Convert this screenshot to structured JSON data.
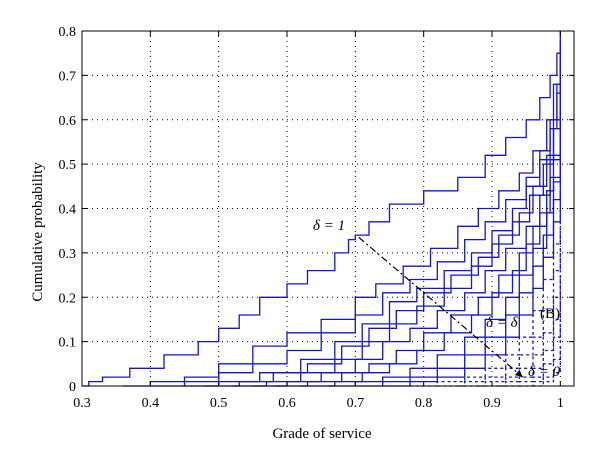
{
  "chart_data": {
    "type": "line",
    "title": "",
    "xlabel": "Grade of service",
    "ylabel": "Cumulative probability",
    "xlim": [
      0.3,
      1.02
    ],
    "ylim": [
      0,
      0.8
    ],
    "xticks": [
      "0.3",
      "0.4",
      "0.5",
      "0.6",
      "0.7",
      "0.8",
      "0.9",
      "1"
    ],
    "yticks": [
      "0",
      "0.1",
      "0.2",
      "0.3",
      "0.4",
      "0.5",
      "0.6",
      "0.7",
      "0.8"
    ],
    "grid": true,
    "line_color": "#1515d0",
    "annotations": {
      "delta_one": "δ = 1",
      "delta_b": "δ = δ",
      "delta_b_sup": "(B)",
      "delta_zero": "δ = 0"
    },
    "series": [
      {
        "style": "solid",
        "x": [
          0.3,
          0.31,
          0.33,
          0.37,
          0.42,
          0.47,
          0.5,
          0.53,
          0.56,
          0.6,
          0.63,
          0.67,
          0.69,
          0.7,
          0.72,
          0.75,
          0.8,
          0.85,
          0.89,
          0.92,
          0.95,
          0.97,
          0.985,
          0.995,
          1.0
        ],
        "y": [
          0.0,
          0.01,
          0.02,
          0.04,
          0.07,
          0.1,
          0.13,
          0.16,
          0.2,
          0.23,
          0.26,
          0.3,
          0.33,
          0.34,
          0.37,
          0.41,
          0.44,
          0.47,
          0.52,
          0.56,
          0.6,
          0.65,
          0.7,
          0.75,
          0.8
        ]
      },
      {
        "style": "solid",
        "x": [
          0.36,
          0.4,
          0.45,
          0.5,
          0.55,
          0.6,
          0.65,
          0.7,
          0.73,
          0.77,
          0.81,
          0.85,
          0.88,
          0.91,
          0.94,
          0.96,
          0.98,
          0.99,
          1.0
        ],
        "y": [
          0.0,
          0.01,
          0.02,
          0.05,
          0.09,
          0.12,
          0.15,
          0.2,
          0.23,
          0.27,
          0.31,
          0.36,
          0.4,
          0.44,
          0.48,
          0.53,
          0.6,
          0.68,
          0.78
        ]
      },
      {
        "style": "solid",
        "x": [
          0.4,
          0.45,
          0.5,
          0.55,
          0.6,
          0.65,
          0.7,
          0.74,
          0.78,
          0.82,
          0.86,
          0.89,
          0.92,
          0.95,
          0.97,
          0.985,
          0.995,
          1.0
        ],
        "y": [
          0.0,
          0.01,
          0.03,
          0.05,
          0.08,
          0.12,
          0.16,
          0.21,
          0.24,
          0.28,
          0.33,
          0.37,
          0.42,
          0.47,
          0.53,
          0.6,
          0.68,
          0.76
        ]
      },
      {
        "style": "solid",
        "x": [
          0.45,
          0.5,
          0.56,
          0.62,
          0.67,
          0.71,
          0.75,
          0.79,
          0.83,
          0.87,
          0.9,
          0.93,
          0.95,
          0.97,
          0.985,
          0.995,
          1.0
        ],
        "y": [
          0.0,
          0.01,
          0.03,
          0.06,
          0.1,
          0.14,
          0.19,
          0.22,
          0.26,
          0.3,
          0.35,
          0.4,
          0.45,
          0.51,
          0.58,
          0.66,
          0.74
        ]
      },
      {
        "style": "solid",
        "x": [
          0.48,
          0.53,
          0.58,
          0.63,
          0.68,
          0.72,
          0.76,
          0.8,
          0.84,
          0.88,
          0.91,
          0.94,
          0.96,
          0.98,
          0.99,
          1.0
        ],
        "y": [
          0.0,
          0.01,
          0.03,
          0.05,
          0.09,
          0.13,
          0.17,
          0.21,
          0.25,
          0.29,
          0.34,
          0.39,
          0.45,
          0.52,
          0.6,
          0.7
        ]
      },
      {
        "style": "solid",
        "x": [
          0.52,
          0.57,
          0.62,
          0.67,
          0.71,
          0.75,
          0.79,
          0.83,
          0.87,
          0.9,
          0.93,
          0.955,
          0.975,
          0.99,
          1.0
        ],
        "y": [
          0.0,
          0.01,
          0.03,
          0.06,
          0.1,
          0.14,
          0.18,
          0.22,
          0.27,
          0.32,
          0.37,
          0.43,
          0.5,
          0.58,
          0.68
        ]
      },
      {
        "style": "solid",
        "x": [
          0.55,
          0.6,
          0.65,
          0.7,
          0.74,
          0.78,
          0.82,
          0.86,
          0.89,
          0.92,
          0.95,
          0.97,
          0.985,
          1.0
        ],
        "y": [
          0.0,
          0.01,
          0.03,
          0.06,
          0.1,
          0.13,
          0.17,
          0.21,
          0.26,
          0.31,
          0.36,
          0.43,
          0.51,
          0.62
        ]
      },
      {
        "style": "solid",
        "x": [
          0.58,
          0.63,
          0.68,
          0.72,
          0.76,
          0.8,
          0.84,
          0.88,
          0.91,
          0.94,
          0.96,
          0.98,
          0.99,
          1.0
        ],
        "y": [
          0.0,
          0.01,
          0.03,
          0.05,
          0.08,
          0.12,
          0.16,
          0.2,
          0.25,
          0.3,
          0.36,
          0.44,
          0.52,
          0.6
        ]
      },
      {
        "style": "solid",
        "x": [
          0.62,
          0.67,
          0.71,
          0.75,
          0.79,
          0.83,
          0.87,
          0.9,
          0.93,
          0.95,
          0.97,
          0.985,
          1.0
        ],
        "y": [
          0.0,
          0.01,
          0.03,
          0.05,
          0.08,
          0.12,
          0.16,
          0.21,
          0.26,
          0.32,
          0.39,
          0.47,
          0.56
        ]
      },
      {
        "style": "solid",
        "x": [
          0.66,
          0.7,
          0.74,
          0.78,
          0.82,
          0.86,
          0.89,
          0.92,
          0.94,
          0.96,
          0.98,
          0.99,
          1.0
        ],
        "y": [
          0.0,
          0.01,
          0.02,
          0.04,
          0.07,
          0.11,
          0.15,
          0.2,
          0.25,
          0.31,
          0.39,
          0.46,
          0.52
        ]
      },
      {
        "style": "solid",
        "x": [
          0.7,
          0.74,
          0.78,
          0.82,
          0.86,
          0.89,
          0.92,
          0.94,
          0.96,
          0.975,
          0.99,
          1.0
        ],
        "y": [
          0.0,
          0.01,
          0.02,
          0.04,
          0.07,
          0.11,
          0.16,
          0.21,
          0.27,
          0.34,
          0.42,
          0.48
        ]
      },
      {
        "style": "solid",
        "x": [
          0.74,
          0.78,
          0.82,
          0.86,
          0.89,
          0.92,
          0.94,
          0.96,
          0.975,
          0.99,
          1.0
        ],
        "y": [
          0.0,
          0.01,
          0.02,
          0.04,
          0.07,
          0.11,
          0.16,
          0.22,
          0.29,
          0.37,
          0.44
        ]
      },
      {
        "style": "dashed",
        "x": [
          0.78,
          0.82,
          0.86,
          0.89,
          0.92,
          0.94,
          0.96,
          0.975,
          0.99,
          1.0
        ],
        "y": [
          0.0,
          0.01,
          0.02,
          0.04,
          0.07,
          0.11,
          0.17,
          0.24,
          0.32,
          0.4
        ]
      },
      {
        "style": "dashed",
        "x": [
          0.82,
          0.86,
          0.89,
          0.92,
          0.94,
          0.96,
          0.975,
          0.99,
          1.0
        ],
        "y": [
          0.0,
          0.01,
          0.02,
          0.04,
          0.07,
          0.11,
          0.17,
          0.26,
          0.35
        ]
      },
      {
        "style": "dashed",
        "x": [
          0.85,
          0.89,
          0.92,
          0.94,
          0.96,
          0.975,
          0.99,
          1.0
        ],
        "y": [
          0.0,
          0.01,
          0.02,
          0.04,
          0.07,
          0.12,
          0.2,
          0.3
        ]
      },
      {
        "style": "dashed",
        "x": [
          0.88,
          0.92,
          0.94,
          0.96,
          0.975,
          0.99,
          1.0
        ],
        "y": [
          0.0,
          0.01,
          0.02,
          0.04,
          0.08,
          0.15,
          0.25
        ]
      },
      {
        "style": "dashed",
        "x": [
          0.91,
          0.94,
          0.96,
          0.975,
          0.99,
          1.0
        ],
        "y": [
          0.0,
          0.01,
          0.02,
          0.05,
          0.11,
          0.2
        ]
      },
      {
        "style": "dashed",
        "x": [
          0.94,
          0.96,
          0.975,
          0.99,
          1.0
        ],
        "y": [
          0.0,
          0.01,
          0.02,
          0.06,
          0.14
        ]
      },
      {
        "style": "dashed",
        "x": [
          0.96,
          0.975,
          0.99,
          1.0
        ],
        "y": [
          0.0,
          0.01,
          0.03,
          0.08
        ]
      }
    ],
    "arrow": {
      "style": "dash-dot",
      "x": [
        0.705,
        0.945
      ],
      "y": [
        0.335,
        0.02
      ]
    }
  }
}
